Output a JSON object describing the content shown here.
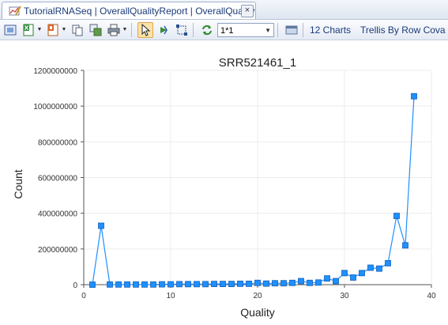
{
  "tab": {
    "title": "TutorialRNASeq | OverallQualityReport | OverallQuality",
    "close_glyph": "×"
  },
  "toolbar": {
    "layout_value": "1*1",
    "charts_label": "12 Charts",
    "trellis_label": "Trellis By Row Cova",
    "icons": [
      "fit-icon",
      "excel-icon",
      "export-icon",
      "copy-icon",
      "copy-image-icon",
      "print-icon",
      "pointer-icon",
      "pan-icon",
      "select-region-icon",
      "refresh-icon",
      "layout-icon"
    ]
  },
  "chart_data": {
    "type": "line",
    "title": "SRR521461_1",
    "xlabel": "Quality",
    "ylabel": "Count",
    "xlim": [
      0,
      40
    ],
    "ylim": [
      0,
      1200000000
    ],
    "xticks": [
      0,
      10,
      20,
      30,
      40
    ],
    "yticks": [
      0,
      200000000,
      400000000,
      600000000,
      800000000,
      1000000000,
      1200000000
    ],
    "xtick_labels": [
      "0",
      "10",
      "20",
      "30",
      "40"
    ],
    "ytick_labels": [
      "0",
      "200000000",
      "400000000",
      "600000000",
      "800000000",
      "1000000000",
      "1200000000"
    ],
    "grid": true,
    "color": "#1e90ff",
    "series": [
      {
        "x": [
          1,
          2,
          3,
          4,
          5,
          6,
          7,
          8,
          9,
          10,
          11,
          12,
          13,
          14,
          15,
          16,
          17,
          18,
          19,
          20,
          21,
          22,
          23,
          24,
          25,
          26,
          27,
          28,
          29,
          30,
          31,
          32,
          33,
          34,
          35,
          36,
          37,
          38
        ],
        "y": [
          0,
          330000000,
          1000000,
          1000000,
          1000000,
          1000000,
          1000000,
          1000000,
          2000000,
          2000000,
          3000000,
          3000000,
          3000000,
          3000000,
          4000000,
          4000000,
          4000000,
          5000000,
          5000000,
          10000000,
          6000000,
          8000000,
          8000000,
          10000000,
          20000000,
          10000000,
          12000000,
          35000000,
          20000000,
          65000000,
          40000000,
          65000000,
          95000000,
          90000000,
          120000000,
          385000000,
          220000000,
          1055000000
        ]
      }
    ]
  }
}
